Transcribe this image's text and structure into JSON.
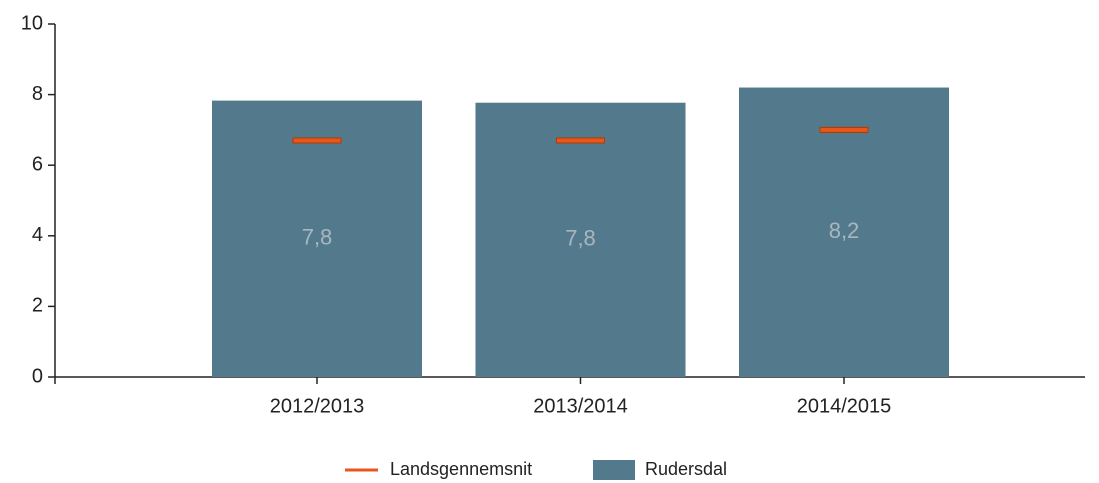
{
  "chart_data": {
    "type": "bar",
    "categories": [
      "2012/2013",
      "2013/2014",
      "2014/2015"
    ],
    "series": [
      {
        "name": "Landsgennemsnit",
        "color": "#e8561a",
        "values": [
          6.7,
          6.7,
          7.0
        ]
      },
      {
        "name": "Rudersdal",
        "color": "#537a8c",
        "values": [
          7.83,
          7.77,
          8.2
        ],
        "value_labels": [
          "7,8",
          "7,8",
          "8,2"
        ]
      }
    ],
    "ylim": [
      0,
      10
    ],
    "yticks": [
      0,
      2,
      4,
      6,
      8,
      10
    ],
    "grid": false,
    "legend": "bottom"
  }
}
